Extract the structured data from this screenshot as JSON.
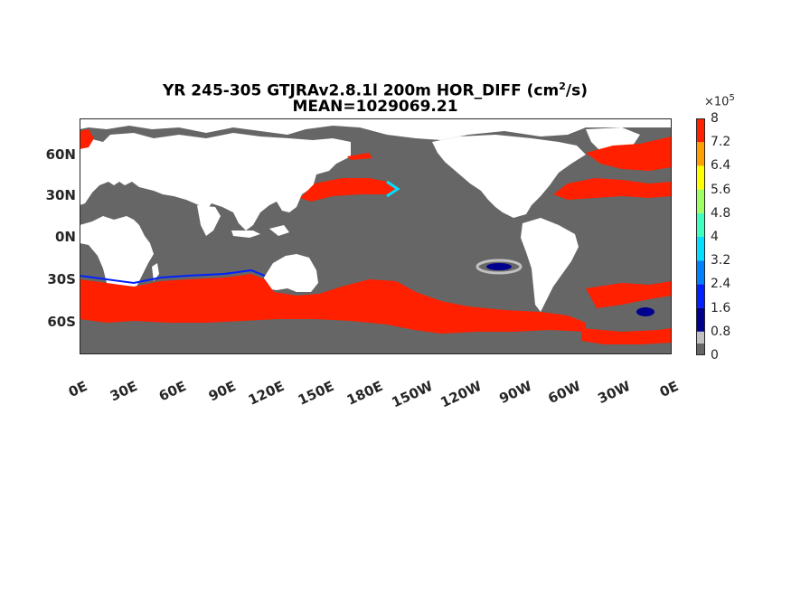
{
  "title": {
    "line1_prefix": "YR 245-305 GTJRAv2.8.1l 200m HOR_DIFF (cm",
    "line1_sup": "2",
    "line1_suffix": "/s)",
    "line2": "MEAN=1029069.21"
  },
  "map": {
    "projection": "equirectangular",
    "lon_range": [
      0,
      360
    ],
    "lat_range": [
      -80,
      90
    ],
    "ocean_base_color": "#666666",
    "land_color": "#ffffff",
    "coastline_color": "#000000"
  },
  "y_tick_labels": [
    "60N",
    "30N",
    "0N",
    "30S",
    "60S"
  ],
  "x_tick_labels": [
    "0E",
    "30E",
    "60E",
    "90E",
    "120E",
    "150E",
    "180E",
    "150W",
    "120W",
    "90W",
    "60W",
    "30W",
    "0E"
  ],
  "colorbar": {
    "multiplier_base": "×10",
    "multiplier_exp": "5",
    "tick_labels": [
      "8",
      "7.2",
      "6.4",
      "5.6",
      "4.8",
      "4",
      "3.2",
      "2.4",
      "1.6",
      "0.8",
      "0"
    ],
    "colors_bottom_to_top": [
      "#666666",
      "#c0c0c0",
      "#00008f",
      "#0020ff",
      "#0080ff",
      "#00dfff",
      "#40ffbf",
      "#9fff60",
      "#ffff00",
      "#ff9f00",
      "#ff2000"
    ]
  },
  "regions": [
    {
      "name": "southern-ocean-high-diffusivity",
      "level": "8"
    },
    {
      "name": "north-pacific-kuroshio-high-diffusivity",
      "level": "8"
    },
    {
      "name": "north-atlantic-high-diffusivity",
      "level": "8"
    },
    {
      "name": "south-pacific-low-diffusivity-patch",
      "level": "1.6"
    }
  ]
}
